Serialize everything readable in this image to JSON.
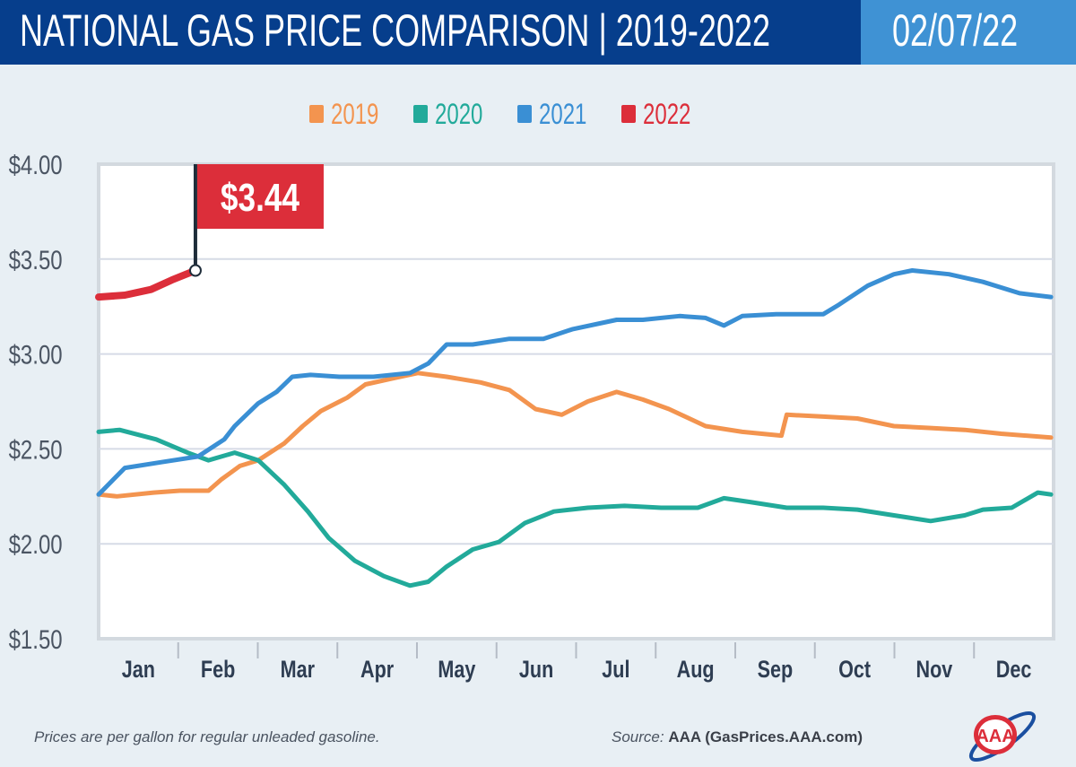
{
  "header": {
    "title": "NATIONAL GAS PRICE COMPARISON",
    "title_years": "| 2019-2022",
    "date": "02/07/22"
  },
  "footer": {
    "note": "Prices are per gallon for regular unleaded gasoline.",
    "source_label": "Source:",
    "source_value": "AAA (GasPrices.AAA.com)",
    "logo_text": "AAA"
  },
  "colors": {
    "header": "#063e8c",
    "date_box": "#3f92d4",
    "2019": "#f3944f",
    "2020": "#22aa9a",
    "2021": "#3a8fd4",
    "2022": "#dc2e3a"
  },
  "chart_data": {
    "type": "line",
    "xlabel": "",
    "ylabel": "",
    "ylim": [
      1.5,
      4.0
    ],
    "y_ticks": [
      "$4.00",
      "$3.50",
      "$3.00",
      "$2.50",
      "$2.00",
      "$1.50"
    ],
    "x_ticks": [
      "Jan",
      "Feb",
      "Mar",
      "Apr",
      "May",
      "Jun",
      "Jul",
      "Aug",
      "Sep",
      "Oct",
      "Nov",
      "Dec"
    ],
    "grid": true,
    "legend": "top-center",
    "callout": {
      "label": "$3.44",
      "series": "2022",
      "date": "02-07",
      "value": 3.44
    },
    "series": [
      {
        "name": "2019",
        "color": "#f3944f",
        "points": [
          [
            "01-01",
            2.26
          ],
          [
            "01-08",
            2.25
          ],
          [
            "01-22",
            2.27
          ],
          [
            "02-01",
            2.28
          ],
          [
            "02-12",
            2.28
          ],
          [
            "02-17",
            2.34
          ],
          [
            "02-24",
            2.41
          ],
          [
            "03-03",
            2.44
          ],
          [
            "03-13",
            2.53
          ],
          [
            "03-20",
            2.62
          ],
          [
            "03-27",
            2.7
          ],
          [
            "04-06",
            2.77
          ],
          [
            "04-13",
            2.84
          ],
          [
            "04-23",
            2.87
          ],
          [
            "05-03",
            2.9
          ],
          [
            "05-14",
            2.88
          ],
          [
            "05-27",
            2.85
          ],
          [
            "06-07",
            2.81
          ],
          [
            "06-17",
            2.71
          ],
          [
            "06-27",
            2.68
          ],
          [
            "07-07",
            2.75
          ],
          [
            "07-18",
            2.8
          ],
          [
            "07-28",
            2.76
          ],
          [
            "08-07",
            2.71
          ],
          [
            "08-21",
            2.62
          ],
          [
            "09-04",
            2.59
          ],
          [
            "09-19",
            2.57
          ],
          [
            "09-21",
            2.68
          ],
          [
            "10-05",
            2.67
          ],
          [
            "10-18",
            2.66
          ],
          [
            "11-01",
            2.62
          ],
          [
            "11-15",
            2.61
          ],
          [
            "11-28",
            2.6
          ],
          [
            "12-12",
            2.58
          ],
          [
            "12-31",
            2.56
          ]
        ]
      },
      {
        "name": "2020",
        "color": "#22aa9a",
        "points": [
          [
            "01-01",
            2.59
          ],
          [
            "01-09",
            2.6
          ],
          [
            "01-23",
            2.55
          ],
          [
            "02-04",
            2.48
          ],
          [
            "02-12",
            2.44
          ],
          [
            "02-22",
            2.48
          ],
          [
            "03-03",
            2.44
          ],
          [
            "03-13",
            2.31
          ],
          [
            "03-22",
            2.17
          ],
          [
            "03-30",
            2.03
          ],
          [
            "04-09",
            1.91
          ],
          [
            "04-20",
            1.83
          ],
          [
            "04-30",
            1.78
          ],
          [
            "05-07",
            1.8
          ],
          [
            "05-14",
            1.88
          ],
          [
            "05-24",
            1.97
          ],
          [
            "06-03",
            2.01
          ],
          [
            "06-13",
            2.11
          ],
          [
            "06-24",
            2.17
          ],
          [
            "07-07",
            2.19
          ],
          [
            "07-21",
            2.2
          ],
          [
            "08-04",
            2.19
          ],
          [
            "08-18",
            2.19
          ],
          [
            "08-28",
            2.24
          ],
          [
            "09-07",
            2.22
          ],
          [
            "09-21",
            2.19
          ],
          [
            "10-05",
            2.19
          ],
          [
            "10-18",
            2.18
          ],
          [
            "11-01",
            2.15
          ],
          [
            "11-15",
            2.12
          ],
          [
            "11-28",
            2.15
          ],
          [
            "12-05",
            2.18
          ],
          [
            "12-16",
            2.19
          ],
          [
            "12-26",
            2.27
          ],
          [
            "12-31",
            2.26
          ]
        ]
      },
      {
        "name": "2021",
        "color": "#3a8fd4",
        "points": [
          [
            "01-01",
            2.26
          ],
          [
            "01-11",
            2.4
          ],
          [
            "01-25",
            2.43
          ],
          [
            "02-08",
            2.46
          ],
          [
            "02-18",
            2.55
          ],
          [
            "02-22",
            2.62
          ],
          [
            "03-03",
            2.74
          ],
          [
            "03-10",
            2.8
          ],
          [
            "03-16",
            2.88
          ],
          [
            "03-23",
            2.89
          ],
          [
            "04-03",
            2.88
          ],
          [
            "04-16",
            2.88
          ],
          [
            "04-30",
            2.9
          ],
          [
            "05-07",
            2.95
          ],
          [
            "05-14",
            3.05
          ],
          [
            "05-24",
            3.05
          ],
          [
            "06-07",
            3.08
          ],
          [
            "06-20",
            3.08
          ],
          [
            "07-01",
            3.13
          ],
          [
            "07-18",
            3.18
          ],
          [
            "07-28",
            3.18
          ],
          [
            "08-11",
            3.2
          ],
          [
            "08-21",
            3.19
          ],
          [
            "08-28",
            3.15
          ],
          [
            "09-04",
            3.2
          ],
          [
            "09-17",
            3.21
          ],
          [
            "10-05",
            3.21
          ],
          [
            "10-11",
            3.26
          ],
          [
            "10-22",
            3.36
          ],
          [
            "11-01",
            3.42
          ],
          [
            "11-08",
            3.44
          ],
          [
            "11-22",
            3.42
          ],
          [
            "12-05",
            3.38
          ],
          [
            "12-19",
            3.32
          ],
          [
            "12-31",
            3.3
          ]
        ]
      },
      {
        "name": "2022",
        "color": "#dc2e3a",
        "points": [
          [
            "01-01",
            3.3
          ],
          [
            "01-11",
            3.31
          ],
          [
            "01-21",
            3.34
          ],
          [
            "01-29",
            3.39
          ],
          [
            "02-07",
            3.44
          ]
        ]
      }
    ]
  }
}
